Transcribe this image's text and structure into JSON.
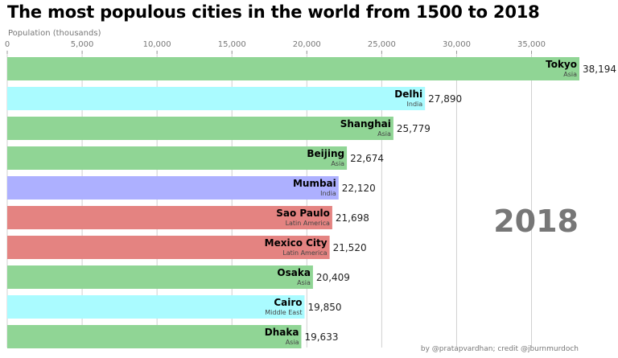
{
  "chart_data": {
    "type": "bar",
    "orientation": "horizontal",
    "title": "The most populous cities in the world from 1500 to 2018",
    "xlabel": "Population (thousands)",
    "xlim": [
      0,
      38194
    ],
    "xticks": [
      0,
      5000,
      10000,
      15000,
      20000,
      25000,
      30000,
      35000
    ],
    "xtick_labels": [
      "0",
      "5,000",
      "10,000",
      "15,000",
      "20,000",
      "25,000",
      "30,000",
      "35,000"
    ],
    "grid": true,
    "year": "2018",
    "credit": "by @pratapvardhan; credit @jburnmurdoch",
    "bars": [
      {
        "city": "Tokyo",
        "region": "Asia",
        "value": 38194,
        "value_label": "38,194",
        "color": "#90d595"
      },
      {
        "city": "Delhi",
        "region": "India",
        "value": 27890,
        "value_label": "27,890",
        "color": "#aafbff"
      },
      {
        "city": "Shanghai",
        "region": "Asia",
        "value": 25779,
        "value_label": "25,779",
        "color": "#90d595"
      },
      {
        "city": "Beijing",
        "region": "Asia",
        "value": 22674,
        "value_label": "22,674",
        "color": "#90d595"
      },
      {
        "city": "Mumbai",
        "region": "India",
        "value": 22120,
        "value_label": "22,120",
        "color": "#adb0ff"
      },
      {
        "city": "Sao Paulo",
        "region": "Latin America",
        "value": 21698,
        "value_label": "21,698",
        "color": "#e48381"
      },
      {
        "city": "Mexico City",
        "region": "Latin America",
        "value": 21520,
        "value_label": "21,520",
        "color": "#e48381"
      },
      {
        "city": "Osaka",
        "region": "Asia",
        "value": 20409,
        "value_label": "20,409",
        "color": "#90d595"
      },
      {
        "city": "Cairo",
        "region": "Middle East",
        "value": 19850,
        "value_label": "19,850",
        "color": "#aafbff"
      },
      {
        "city": "Dhaka",
        "region": "Asia",
        "value": 19633,
        "value_label": "19,633",
        "color": "#90d595"
      }
    ]
  }
}
